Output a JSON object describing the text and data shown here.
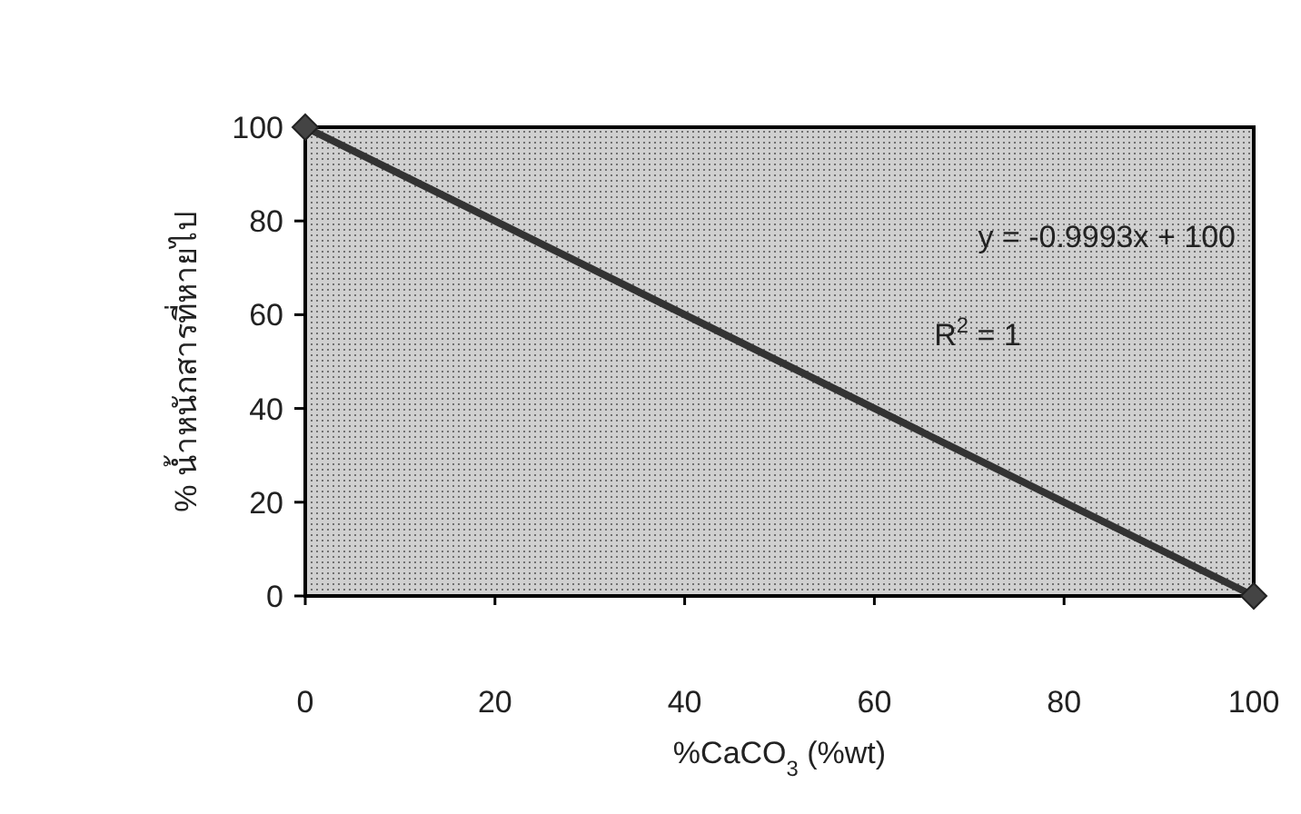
{
  "chart_data": {
    "type": "line",
    "xlabel": "%CaCO$_{3}$ (%wt)",
    "ylabel": "% น้ำหนักสารที่หายไป",
    "annotations": [
      "y = -0.9993x + 100",
      "R$^{2}$ = 1"
    ],
    "series": [
      {
        "x": [
          0,
          100
        ],
        "values": [
          100,
          0
        ],
        "color": "#333333"
      }
    ],
    "xlim": [
      0,
      100
    ],
    "ylim": [
      0,
      100
    ],
    "xticks": [
      0,
      20,
      40,
      60,
      80,
      100
    ],
    "yticks": [
      0,
      20,
      40,
      60,
      80,
      100
    ],
    "marker": "diamond",
    "line_style": "solid",
    "grid": false
  }
}
